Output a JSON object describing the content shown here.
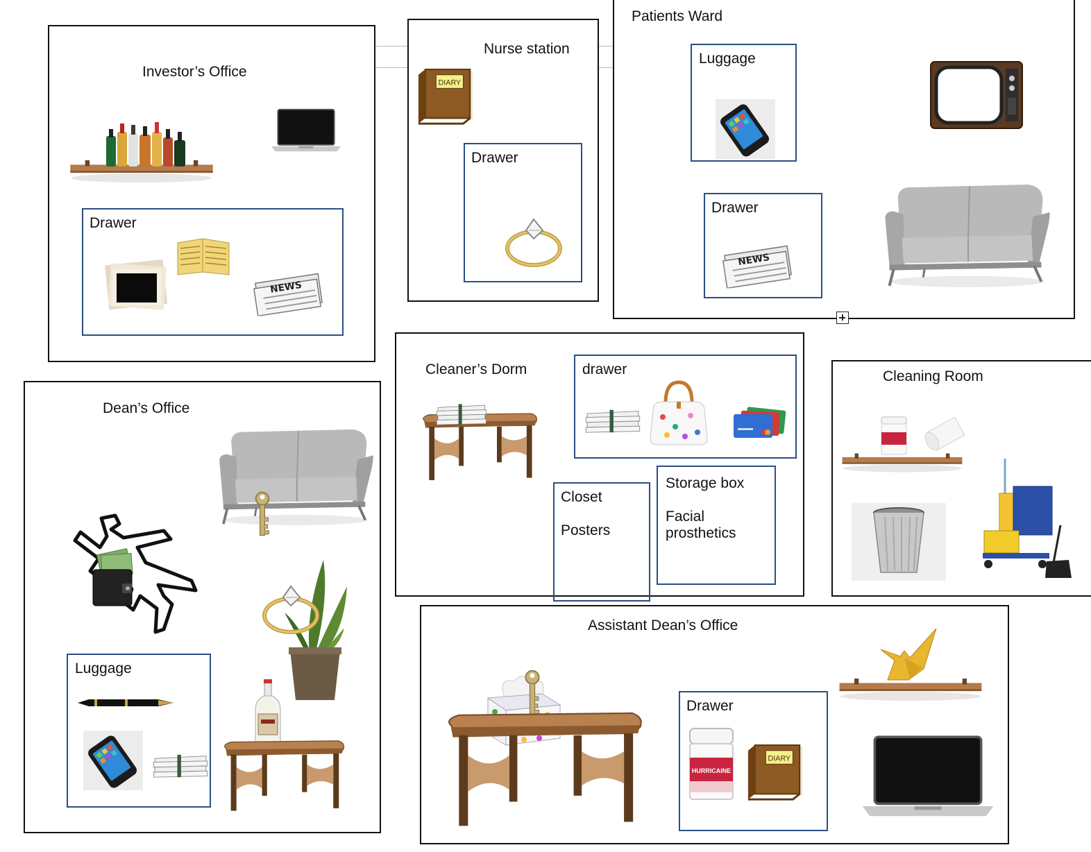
{
  "rooms": {
    "investors_office": {
      "title": "Investor’s Office",
      "drawer": "Drawer",
      "newspaper_text": "NEWS"
    },
    "nurse_station": {
      "title": "Nurse station",
      "drawer": "Drawer",
      "diary_text": "DIARY"
    },
    "patients_ward": {
      "title": "Patients Ward",
      "luggage": "Luggage",
      "drawer": "Drawer",
      "newspaper_text": "NEWS"
    },
    "cleaners_dorm": {
      "title": "Cleaner’s Dorm",
      "drawer": "drawer",
      "closet": "Closet",
      "closet_item": "Posters",
      "storage_box": "Storage box",
      "storage_item": "Facial prosthetics"
    },
    "cleaning_room": {
      "title": "Cleaning Room"
    },
    "deans_office": {
      "title": "Dean’s Office",
      "luggage": "Luggage"
    },
    "assistant_deans_office": {
      "title": "Assistant Dean’s Office",
      "drawer": "Drawer",
      "diary_text": "DIARY",
      "medicine_text": "HURRICAINE"
    }
  },
  "colors": {
    "room_border": "#111111",
    "container_border": "#2a4f82",
    "wood": "#b98150"
  }
}
